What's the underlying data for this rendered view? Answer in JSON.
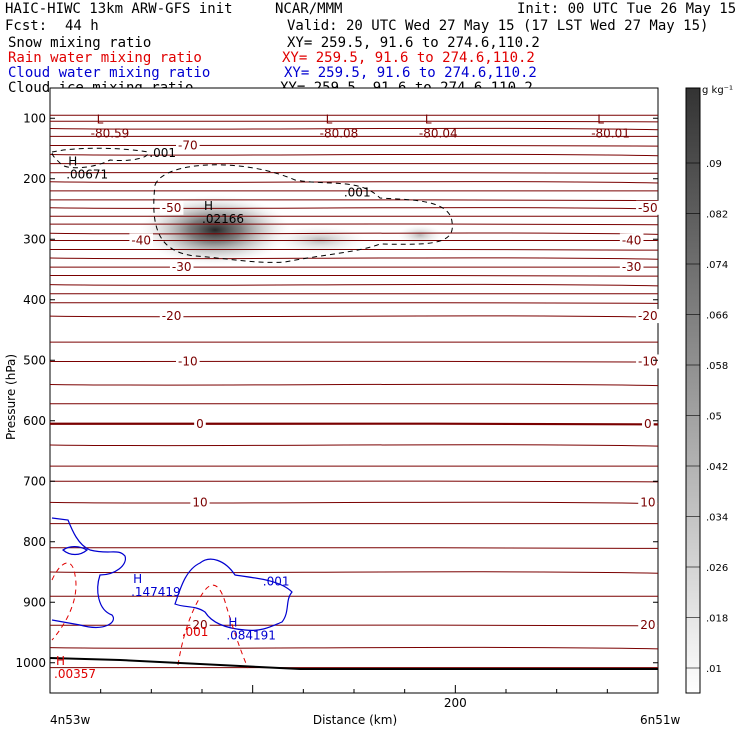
{
  "header": {
    "title": "HAIC-HIWC 13km ARW-GFS init",
    "org": "NCAR/MMM",
    "init": "Init: 00 UTC Tue 26 May 15",
    "fcst_label": "Fcst:",
    "fcst_value": "44 h",
    "valid": "Valid: 20 UTC Wed 27 May 15 (17 LST Wed 27 May 15)"
  },
  "fields": [
    {
      "name": "Snow mixing ratio",
      "xy": "XY= 259.5, 91.6 to 274.6,110.2",
      "color": "#000000"
    },
    {
      "name": "Rain water mixing ratio",
      "xy": "XY= 259.5, 91.6 to 274.6,110.2",
      "color": "#e00000"
    },
    {
      "name": "Cloud water mixing ratio",
      "xy": "XY= 259.5, 91.6 to 274.6,110.2",
      "color": "#0000d0"
    },
    {
      "name": "Cloud ice mixing ratio",
      "xy": "XY= 259.5, 91.6 to 274.6,110.2",
      "color": "#000000"
    }
  ],
  "colorbar": {
    "unit": "g kg⁻¹",
    "labels": [
      ".09",
      ".082",
      ".074",
      ".066",
      ".058",
      ".05",
      ".042",
      ".034",
      ".026",
      ".018",
      ".01"
    ]
  },
  "chart_data": {
    "type": "contour",
    "ylabel": "Pressure (hPa)",
    "xlabel": "Distance (km)",
    "x_range": [
      0,
      300
    ],
    "y_range": [
      1050,
      50
    ],
    "y_ticks": [
      100,
      200,
      300,
      400,
      500,
      600,
      700,
      800,
      900,
      1000
    ],
    "x_ticks": [
      200
    ],
    "x_endpoints": [
      "4n53w",
      "6n51w"
    ],
    "temperature_contours": [
      {
        "pressure": 145,
        "label": "-70",
        "label_x": 68
      },
      {
        "pressure": 248,
        "label": "-50",
        "label_x": 60
      },
      {
        "pressure": 248,
        "label": "-50",
        "label_x": 295
      },
      {
        "pressure": 302,
        "label": "-40",
        "label_x": 45
      },
      {
        "pressure": 302,
        "label": "-40",
        "label_x": 287
      },
      {
        "pressure": 346,
        "label": "-30",
        "label_x": 65
      },
      {
        "pressure": 346,
        "label": "-30",
        "label_x": 287
      },
      {
        "pressure": 427,
        "label": "-20",
        "label_x": 60
      },
      {
        "pressure": 427,
        "label": "-20",
        "label_x": 295
      },
      {
        "pressure": 502,
        "label": "-10",
        "label_x": 68
      },
      {
        "pressure": 502,
        "label": "-10",
        "label_x": 295
      },
      {
        "pressure": 605,
        "label": "0",
        "label_x": 74
      },
      {
        "pressure": 605,
        "label": "0",
        "label_x": 295
      },
      {
        "pressure": 735,
        "label": "10",
        "label_x": 74
      },
      {
        "pressure": 735,
        "label": "10",
        "label_x": 295
      },
      {
        "pressure": 938,
        "label": "20",
        "label_x": 74
      },
      {
        "pressure": 938,
        "label": "20",
        "label_x": 295
      }
    ],
    "minima_labels": [
      {
        "letter": "L",
        "value": "-80.59",
        "x": 23,
        "pressure": 117
      },
      {
        "letter": "L",
        "value": "-80.08",
        "x": 136,
        "pressure": 117
      },
      {
        "letter": "L",
        "value": "-80.04",
        "x": 185,
        "pressure": 117
      },
      {
        "letter": "L",
        "value": "-80.01",
        "x": 270,
        "pressure": 117
      }
    ],
    "maxima_labels": [
      {
        "letter": "H",
        "value": ".00671",
        "x": 8,
        "pressure": 185,
        "color": "#000000"
      },
      {
        "letter": "H",
        "value": ".02166",
        "x": 75,
        "pressure": 258,
        "color": "#000000"
      },
      {
        "letter": "H",
        "value": ".147419",
        "x": 40,
        "pressure": 875,
        "color": "#0000d0"
      },
      {
        "letter": "H",
        "value": ".084191",
        "x": 87,
        "pressure": 947,
        "color": "#0000d0"
      },
      {
        "letter": "H",
        "value": ".00357",
        "x": 2,
        "pressure": 1010,
        "color": "#e00000"
      }
    ],
    "contour_labels": [
      {
        "text": ".001",
        "x": 49,
        "pressure": 164,
        "color": "#000000"
      },
      {
        "text": ".001",
        "x": 145,
        "pressure": 229,
        "color": "#000000"
      },
      {
        "text": ".001",
        "x": 105,
        "pressure": 872,
        "color": "#0000d0"
      },
      {
        "text": ".001",
        "x": 65,
        "pressure": 956,
        "color": "#e00000"
      }
    ],
    "snow_max": {
      "value": 0.09,
      "x": 80,
      "pressure": 275
    }
  }
}
